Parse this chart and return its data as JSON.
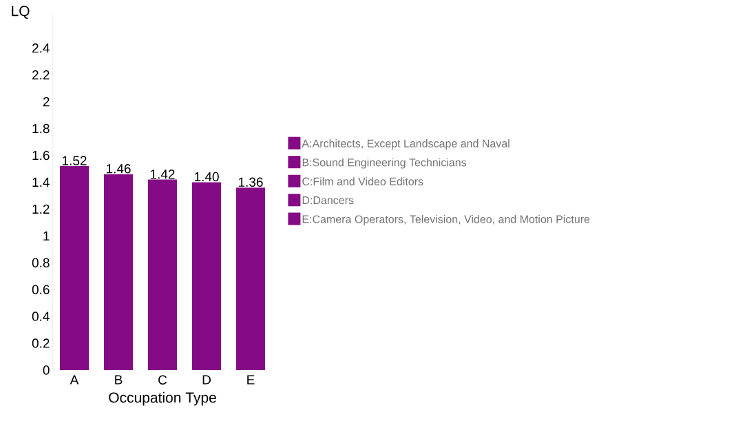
{
  "chart_data": {
    "type": "bar",
    "xlabel": "Occupation Type",
    "ylabel": "LQ",
    "categories": [
      "A",
      "B",
      "C",
      "D",
      "E"
    ],
    "series": [
      {
        "name": "A:Architects, Except Landscape and Naval",
        "color": "#850a85",
        "values": [
          1.52,
          null,
          null,
          null,
          null
        ],
        "value_labels": [
          "1.52",
          null,
          null,
          null,
          null
        ]
      },
      {
        "name": "B:Sound Engineering Technicians",
        "color": "#850a85",
        "values": [
          null,
          1.46,
          null,
          null,
          null
        ],
        "value_labels": [
          null,
          "1.46",
          null,
          null,
          null
        ]
      },
      {
        "name": "C:Film and Video Editors",
        "color": "#850a85",
        "values": [
          null,
          null,
          1.42,
          null,
          null
        ],
        "value_labels": [
          null,
          null,
          "1.42",
          null,
          null
        ]
      },
      {
        "name": "D:Dancers",
        "color": "#850a85",
        "values": [
          null,
          null,
          null,
          1.4,
          null
        ],
        "value_labels": [
          null,
          null,
          null,
          "1.40",
          null
        ]
      },
      {
        "name": "E:Camera Operators, Television, Video, and Motion Picture",
        "color": "#850a85",
        "values": [
          null,
          null,
          null,
          null,
          1.36
        ],
        "value_labels": [
          null,
          null,
          null,
          null,
          "1.36"
        ]
      }
    ],
    "ylim": [
      0,
      2.65
    ],
    "yticks": [
      0,
      0.2,
      0.4,
      0.6,
      0.8,
      1,
      1.2,
      1.4,
      1.6,
      1.8,
      2,
      2.2,
      2.4
    ],
    "grid": false,
    "legend": "right"
  }
}
